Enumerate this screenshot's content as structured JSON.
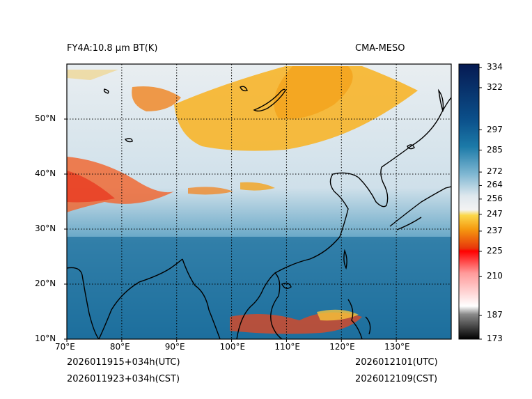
{
  "header": {
    "left_title": "FY4A:10.8 µm BT(K)",
    "right_title": "CMA-MESO"
  },
  "map": {
    "lon_labels": [
      "70°E",
      "80°E",
      "90°E",
      "100°E",
      "110°E",
      "120°E",
      "130°E"
    ],
    "lat_labels": [
      "10°N",
      "20°N",
      "30°N",
      "40°N",
      "50°N"
    ],
    "lon_range": [
      70,
      140
    ],
    "lat_range": [
      10,
      60
    ]
  },
  "colorbar": {
    "ticks": [
      "173",
      "187",
      "210",
      "225",
      "237",
      "247",
      "256",
      "264",
      "272",
      "285",
      "297",
      "322",
      "334"
    ],
    "tick_values": [
      173,
      187,
      210,
      225,
      237,
      247,
      256,
      264,
      272,
      285,
      297,
      322,
      334
    ],
    "range": [
      173,
      336
    ]
  },
  "footer": {
    "init_utc": "2026011915+034h(UTC)",
    "init_cst": "2026011923+034h(CST)",
    "valid_utc": "2026012101(UTC)",
    "valid_cst": "2026012109(CST)"
  }
}
